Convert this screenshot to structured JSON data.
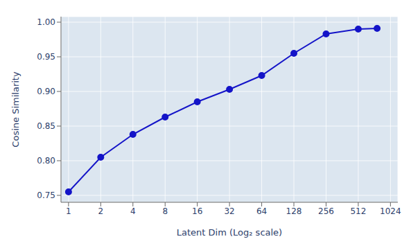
{
  "chart_data": {
    "type": "line",
    "xlabel": "Latent Dim (Log₂ scale)",
    "ylabel": "Cosine Similarity",
    "x": [
      1,
      2,
      4,
      8,
      16,
      32,
      64,
      128,
      256,
      512,
      768
    ],
    "values": [
      0.755,
      0.805,
      0.838,
      0.863,
      0.885,
      0.903,
      0.923,
      0.955,
      0.983,
      0.99,
      0.991
    ],
    "color": "#1414c8",
    "marker": "circle",
    "xlim": [
      0.85,
      1200
    ],
    "xticks": [
      1,
      2,
      4,
      8,
      16,
      32,
      64,
      128,
      256,
      512,
      1024
    ],
    "ylim": [
      0.74,
      1.008
    ],
    "yticks": [
      0.75,
      {
        "value": 0.8,
        "label": "0.80"
      },
      0.85,
      {
        "value": 0.9,
        "label": "0.90"
      },
      0.95,
      {
        "value": 1.0,
        "label": "1.00"
      }
    ],
    "log": "x",
    "grid": true
  }
}
